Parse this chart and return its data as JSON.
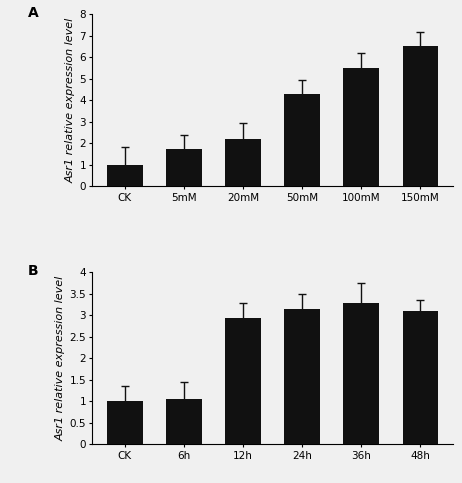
{
  "panel_A": {
    "categories": [
      "CK",
      "5mM",
      "20mM",
      "50mM",
      "100mM",
      "150mM"
    ],
    "values": [
      1.0,
      1.75,
      2.2,
      4.3,
      5.5,
      6.55
    ],
    "errors": [
      0.85,
      0.65,
      0.75,
      0.65,
      0.7,
      0.65
    ],
    "ylabel": "Asr1 relative expression level",
    "ylim": [
      0,
      8
    ],
    "yticks": [
      0,
      1,
      2,
      3,
      4,
      5,
      6,
      7,
      8
    ],
    "label": "A"
  },
  "panel_B": {
    "categories": [
      "CK",
      "6h",
      "12h",
      "24h",
      "36h",
      "48h"
    ],
    "values": [
      1.0,
      1.05,
      2.95,
      3.15,
      3.3,
      3.1
    ],
    "errors": [
      0.35,
      0.4,
      0.35,
      0.35,
      0.45,
      0.25
    ],
    "ylabel": "Asr1 relative expression level",
    "ylim": [
      0,
      4
    ],
    "yticks": [
      0,
      0.5,
      1.0,
      1.5,
      2.0,
      2.5,
      3.0,
      3.5,
      4.0
    ],
    "label": "B"
  },
  "bar_color": "#111111",
  "bar_width": 0.6,
  "ecolor": "#111111",
  "capsize": 3,
  "tick_fontsize": 7.5,
  "label_fontsize": 8,
  "panel_label_fontsize": 10,
  "background_color": "#f0f0f0"
}
